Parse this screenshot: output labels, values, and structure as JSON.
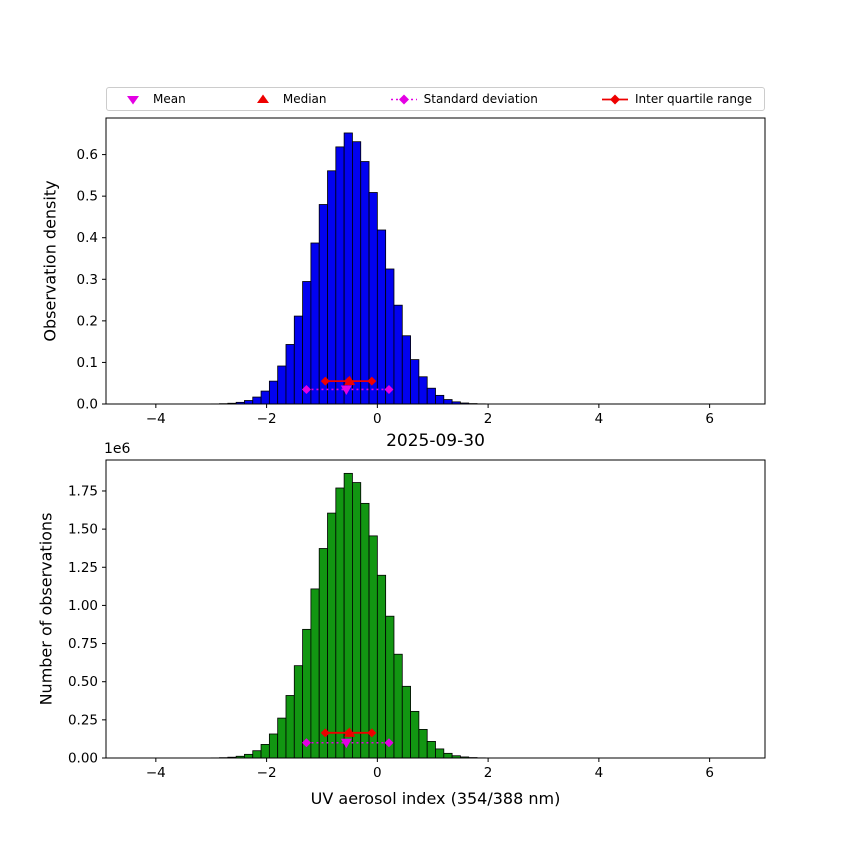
{
  "figure": {
    "title": "2025-09-30",
    "xlabel": "UV aerosol index (354/388 nm)",
    "offset_label": "1e6"
  },
  "legend": {
    "items": [
      {
        "label": "Mean",
        "marker": "triangle-down",
        "color": "#e400e4"
      },
      {
        "label": "Median",
        "marker": "triangle-up",
        "color": "#ee0000"
      },
      {
        "label": "Standard deviation",
        "marker": "diamond-dotted-line",
        "color": "#e400e4"
      },
      {
        "label": "Inter quartile range",
        "marker": "diamond-solid-line",
        "color": "#ee0000"
      }
    ]
  },
  "marker_colors": {
    "mean": "#e400e4",
    "median": "#ee0000",
    "std": "#e400e4",
    "iqr": "#ee0000"
  },
  "chart_data": [
    {
      "type": "bar",
      "title": "",
      "ylabel": "Observation density",
      "bar_color": "#0202f0",
      "bar_edge_color": "#000000",
      "grid": false,
      "legend_position": "top",
      "xlim": [
        -4.9,
        7.0
      ],
      "ylim": [
        0,
        0.688
      ],
      "xticks": [
        -4,
        -2,
        0,
        2,
        4,
        6
      ],
      "xtick_labels": [
        "−4",
        "−2",
        "0",
        "2",
        "4",
        "6"
      ],
      "yticks": [
        0,
        0.1,
        0.2,
        0.3,
        0.4,
        0.5,
        0.6
      ],
      "ytick_labels": [
        "0.0",
        "0.1",
        "0.2",
        "0.3",
        "0.4",
        "0.5",
        "0.6"
      ],
      "bin_start": -3.0,
      "bin_width": 0.15,
      "values": [
        0.0003,
        0.0008,
        0.0018,
        0.004,
        0.0084,
        0.0167,
        0.0311,
        0.055,
        0.0914,
        0.1432,
        0.2115,
        0.2947,
        0.3873,
        0.4799,
        0.561,
        0.6185,
        0.652,
        0.631,
        0.5833,
        0.5088,
        0.4186,
        0.3248,
        0.2377,
        0.1642,
        0.1068,
        0.0655,
        0.038,
        0.0208,
        0.0107,
        0.0052,
        0.0024,
        0.001,
        0.0004,
        0.0002,
        0.0001
      ],
      "stats": {
        "mean": -0.56,
        "median": -0.5,
        "std_low": -1.28,
        "std_high": 0.21,
        "q1": -0.94,
        "q3": -0.1,
        "y_std": 0.035,
        "y_iqr": 0.055
      }
    },
    {
      "type": "bar",
      "title": "2025-09-30",
      "ylabel": "Number of observations",
      "y_offset": "1e6",
      "bar_color": "#129612",
      "bar_edge_color": "#000000",
      "grid": false,
      "xlim": [
        -4.9,
        7.0
      ],
      "ylim": [
        0,
        1953000
      ],
      "xticks": [
        -4,
        -2,
        0,
        2,
        4,
        6
      ],
      "xtick_labels": [
        "−4",
        "−2",
        "0",
        "2",
        "4",
        "6"
      ],
      "yticks": [
        0,
        250000,
        500000,
        750000,
        1000000,
        1250000,
        1500000,
        1750000
      ],
      "ytick_labels": [
        "0.00",
        "0.25",
        "0.50",
        "0.75",
        "1.00",
        "1.25",
        "1.50",
        "1.75"
      ],
      "bin_start": -3.0,
      "bin_width": 0.15,
      "values": [
        900,
        2300,
        5200,
        11400,
        24000,
        47800,
        89000,
        157400,
        261500,
        409700,
        605100,
        843100,
        1108100,
        1373000,
        1605000,
        1769500,
        1865400,
        1805300,
        1668800,
        1455700,
        1197600,
        929300,
        680100,
        469800,
        305600,
        187400,
        108700,
        59500,
        30600,
        14900,
        6900,
        2900,
        1100,
        600,
        300
      ],
      "stats": {
        "mean": -0.56,
        "median": -0.5,
        "std_low": -1.28,
        "std_high": 0.21,
        "q1": -0.94,
        "q3": -0.1,
        "y_std": 100000,
        "y_iqr": 165000
      }
    }
  ]
}
